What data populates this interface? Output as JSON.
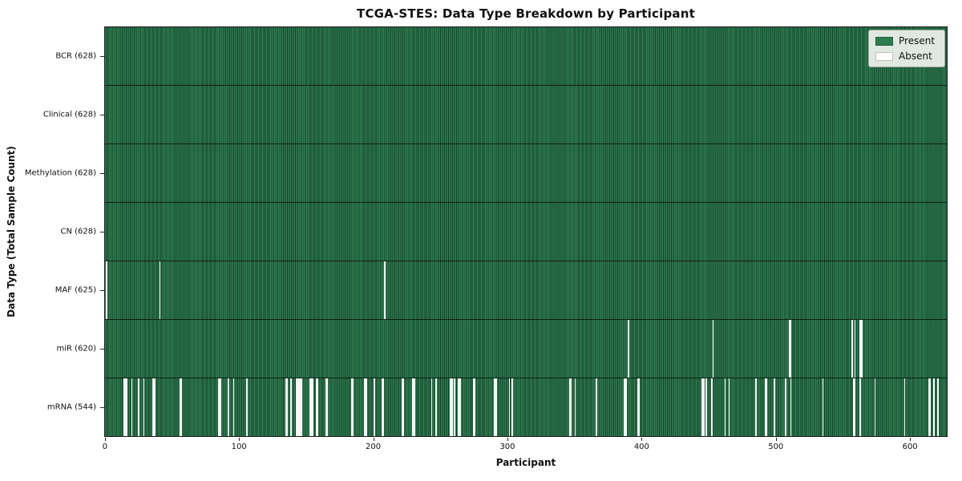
{
  "chart_data": {
    "type": "heatmap",
    "title": "TCGA-STES: Data Type Breakdown by Participant",
    "xlabel": "Participant",
    "ylabel": "Data Type (Total Sample Count)",
    "x_ticks": [
      0,
      100,
      200,
      300,
      400,
      500,
      600
    ],
    "xlim": [
      -0.5,
      628
    ],
    "n_participants": 628,
    "grid": false,
    "legend_position": "upper right",
    "legend": {
      "items": [
        {
          "label": "Present",
          "color": "#2e7d50"
        },
        {
          "label": "Absent",
          "color": "#ffffff"
        }
      ]
    },
    "colors": {
      "present": "#2e7d50",
      "present_edge": "#16402a",
      "absent": "#f7f7f7",
      "divider": "#1a1a1a"
    },
    "rows": [
      {
        "label": "BCR (628)",
        "name": "BCR",
        "present_count": 628,
        "absent_participants": []
      },
      {
        "label": "Clinical (628)",
        "name": "Clinical",
        "present_count": 628,
        "absent_participants": []
      },
      {
        "label": "Methylation (628)",
        "name": "Methylation",
        "present_count": 628,
        "absent_participants": []
      },
      {
        "label": "CN (628)",
        "name": "CN",
        "present_count": 628,
        "absent_participants": []
      },
      {
        "label": "MAF (625)",
        "name": "MAF",
        "present_count": 625,
        "absent_participants": [
          0,
          40,
          208
        ]
      },
      {
        "label": "miR (620)",
        "name": "miR",
        "present_count": 620,
        "absent_participants": [
          390,
          453,
          510,
          511,
          557,
          559,
          563,
          564
        ]
      },
      {
        "label": "mRNA (544)",
        "name": "mRNA",
        "present_count": 544,
        "absent_participants": [
          13,
          14,
          15,
          19,
          24,
          28,
          35,
          36,
          55,
          56,
          84,
          85,
          91,
          95,
          105,
          134,
          135,
          138,
          142,
          143,
          144,
          145,
          146,
          152,
          153,
          154,
          157,
          158,
          164,
          165,
          183,
          184,
          193,
          194,
          200,
          206,
          207,
          221,
          222,
          229,
          230,
          243,
          246,
          257,
          258,
          260,
          263,
          264,
          274,
          275,
          290,
          291,
          301,
          303,
          346,
          347,
          350,
          366,
          387,
          388,
          397,
          398,
          445,
          446,
          448,
          452,
          462,
          465,
          485,
          492,
          493,
          499,
          507,
          511,
          535,
          558,
          559,
          563,
          574,
          596,
          614,
          615,
          618,
          621
        ]
      }
    ]
  }
}
